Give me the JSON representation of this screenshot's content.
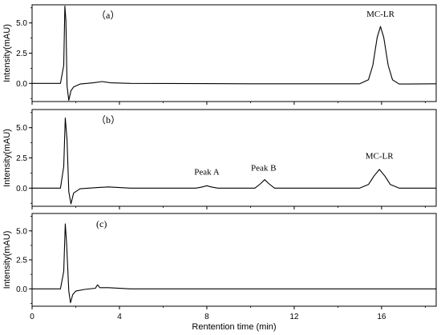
{
  "chart_data": {
    "type": "line",
    "xlabel": "Rentention time (min)",
    "xlim": [
      0,
      18.5
    ],
    "xticks": [
      0,
      4,
      8,
      12,
      16
    ],
    "grid": false,
    "panels": [
      {
        "label": "（a）",
        "ylabel": "Intensity(mAU)",
        "ylim": [
          -1.5,
          6.5
        ],
        "yticks": [
          0.0,
          2.5,
          5.0
        ],
        "series": [
          {
            "points": [
              [
                0,
                0
              ],
              [
                1.3,
                0
              ],
              [
                1.45,
                1.5
              ],
              [
                1.5,
                6.4
              ],
              [
                1.55,
                5.2
              ],
              [
                1.6,
                -0.2
              ],
              [
                1.68,
                -1.4
              ],
              [
                1.78,
                -0.6
              ],
              [
                1.9,
                -0.3
              ],
              [
                2.2,
                -0.05
              ],
              [
                2.8,
                0.05
              ],
              [
                3.2,
                0.15
              ],
              [
                3.6,
                0.05
              ],
              [
                4.5,
                0.0
              ],
              [
                10,
                -0.03
              ],
              [
                15.0,
                -0.03
              ],
              [
                15.4,
                0.3
              ],
              [
                15.6,
                1.5
              ],
              [
                15.8,
                3.8
              ],
              [
                15.95,
                4.7
              ],
              [
                16.1,
                3.8
              ],
              [
                16.3,
                1.5
              ],
              [
                16.5,
                0.3
              ],
              [
                16.8,
                -0.05
              ],
              [
                18.5,
                -0.03
              ]
            ]
          }
        ],
        "annotations": [
          {
            "text": "MC-LR",
            "x": 15.95,
            "y": 5.5
          }
        ]
      },
      {
        "label": "（b）",
        "ylabel": "Intensity(mAU)",
        "ylim": [
          -1.5,
          6.5
        ],
        "yticks": [
          0.0,
          2.5,
          5.0
        ],
        "series": [
          {
            "points": [
              [
                0,
                0
              ],
              [
                1.3,
                0
              ],
              [
                1.45,
                1.8
              ],
              [
                1.52,
                5.8
              ],
              [
                1.6,
                4.0
              ],
              [
                1.68,
                -0.3
              ],
              [
                1.78,
                -1.3
              ],
              [
                1.9,
                -0.4
              ],
              [
                2.2,
                -0.05
              ],
              [
                3.0,
                0.05
              ],
              [
                3.5,
                0.1
              ],
              [
                4.5,
                0.0
              ],
              [
                7.5,
                0.0
              ],
              [
                7.8,
                0.1
              ],
              [
                8.0,
                0.2
              ],
              [
                8.2,
                0.1
              ],
              [
                8.5,
                0.0
              ],
              [
                10.2,
                0.0
              ],
              [
                10.45,
                0.35
              ],
              [
                10.65,
                0.7
              ],
              [
                10.85,
                0.35
              ],
              [
                11.1,
                0.0
              ],
              [
                15.0,
                0.0
              ],
              [
                15.4,
                0.3
              ],
              [
                15.65,
                1.0
              ],
              [
                15.9,
                1.55
              ],
              [
                16.15,
                1.0
              ],
              [
                16.4,
                0.3
              ],
              [
                16.8,
                0.0
              ],
              [
                18.5,
                0.0
              ]
            ]
          }
        ],
        "annotations": [
          {
            "text": "Peak A",
            "x": 8.0,
            "y": 1.1
          },
          {
            "text": "Peak B",
            "x": 10.6,
            "y": 1.45
          },
          {
            "text": "MC-LR",
            "x": 15.9,
            "y": 2.45
          }
        ]
      },
      {
        "label": "(c)",
        "ylabel": "Intensity(mAU)",
        "ylim": [
          -1.5,
          6.5
        ],
        "yticks": [
          0.0,
          2.5,
          5.0
        ],
        "series": [
          {
            "points": [
              [
                0,
                0
              ],
              [
                1.3,
                0
              ],
              [
                1.45,
                1.5
              ],
              [
                1.52,
                5.6
              ],
              [
                1.58,
                4.0
              ],
              [
                1.68,
                -0.2
              ],
              [
                1.76,
                -1.2
              ],
              [
                1.86,
                -0.5
              ],
              [
                2.0,
                -0.2
              ],
              [
                2.4,
                -0.05
              ],
              [
                2.9,
                0.05
              ],
              [
                3.0,
                0.35
              ],
              [
                3.1,
                0.1
              ],
              [
                3.5,
                0.1
              ],
              [
                4.5,
                0.0
              ],
              [
                18.5,
                0.0
              ]
            ]
          }
        ],
        "annotations": []
      }
    ]
  }
}
